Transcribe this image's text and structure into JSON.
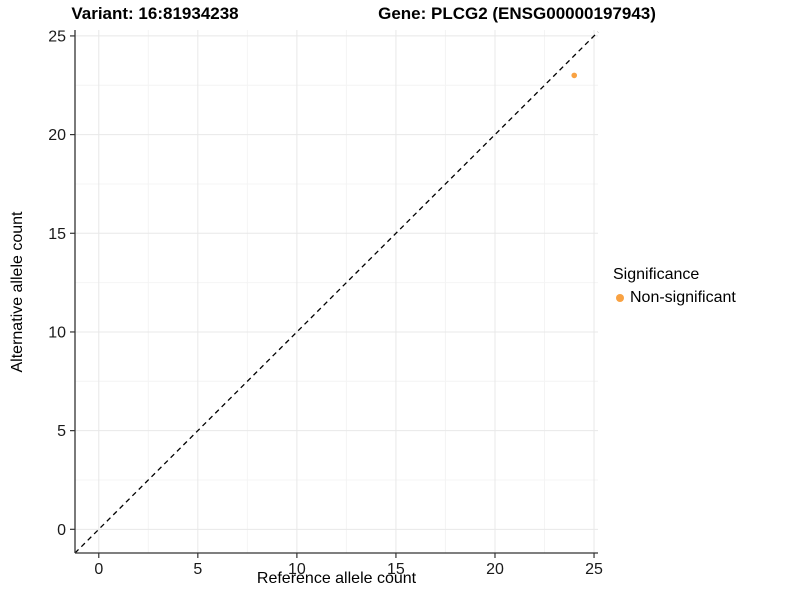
{
  "titles": {
    "left": "Variant: 16:81934238",
    "right": "Gene: PLCG2 (ENSG00000197943)"
  },
  "axes": {
    "x_label": "Reference allele count",
    "y_label": "Alternative allele count"
  },
  "legend": {
    "title": "Significance",
    "items": [
      {
        "label": "Non-significant",
        "color": "#F9A242"
      }
    ]
  },
  "chart_data": {
    "type": "scatter",
    "title": "Variant: 16:81934238    Gene: PLCG2 (ENSG00000197943)",
    "xlabel": "Reference allele count",
    "ylabel": "Alternative allele count",
    "xlim": [
      -1.2,
      25.2
    ],
    "ylim": [
      -1.2,
      25.3
    ],
    "x_ticks": [
      0,
      5,
      10,
      15,
      20,
      25
    ],
    "y_ticks": [
      0,
      5,
      10,
      15,
      20,
      25
    ],
    "x_minor_ticks": [
      2.5,
      7.5,
      12.5,
      17.5,
      22.5
    ],
    "y_minor_ticks": [
      2.5,
      7.5,
      12.5,
      17.5,
      22.5
    ],
    "grid": true,
    "legend_position": "right",
    "legend_title": "Significance",
    "series": [
      {
        "name": "Non-significant",
        "color": "#F9A242",
        "points": [
          {
            "x": 24,
            "y": 23
          }
        ]
      }
    ],
    "reference_line": {
      "type": "identity",
      "equation": "y = x",
      "style": "dashed",
      "color": "#000000"
    },
    "colors": {
      "point": "#F9A242",
      "grid_major": "#E8E8E8",
      "grid_minor": "#F4F4F4",
      "axis_line": "#333333",
      "tick_label": "#1a1a1a",
      "reference_line": "#000000"
    }
  }
}
